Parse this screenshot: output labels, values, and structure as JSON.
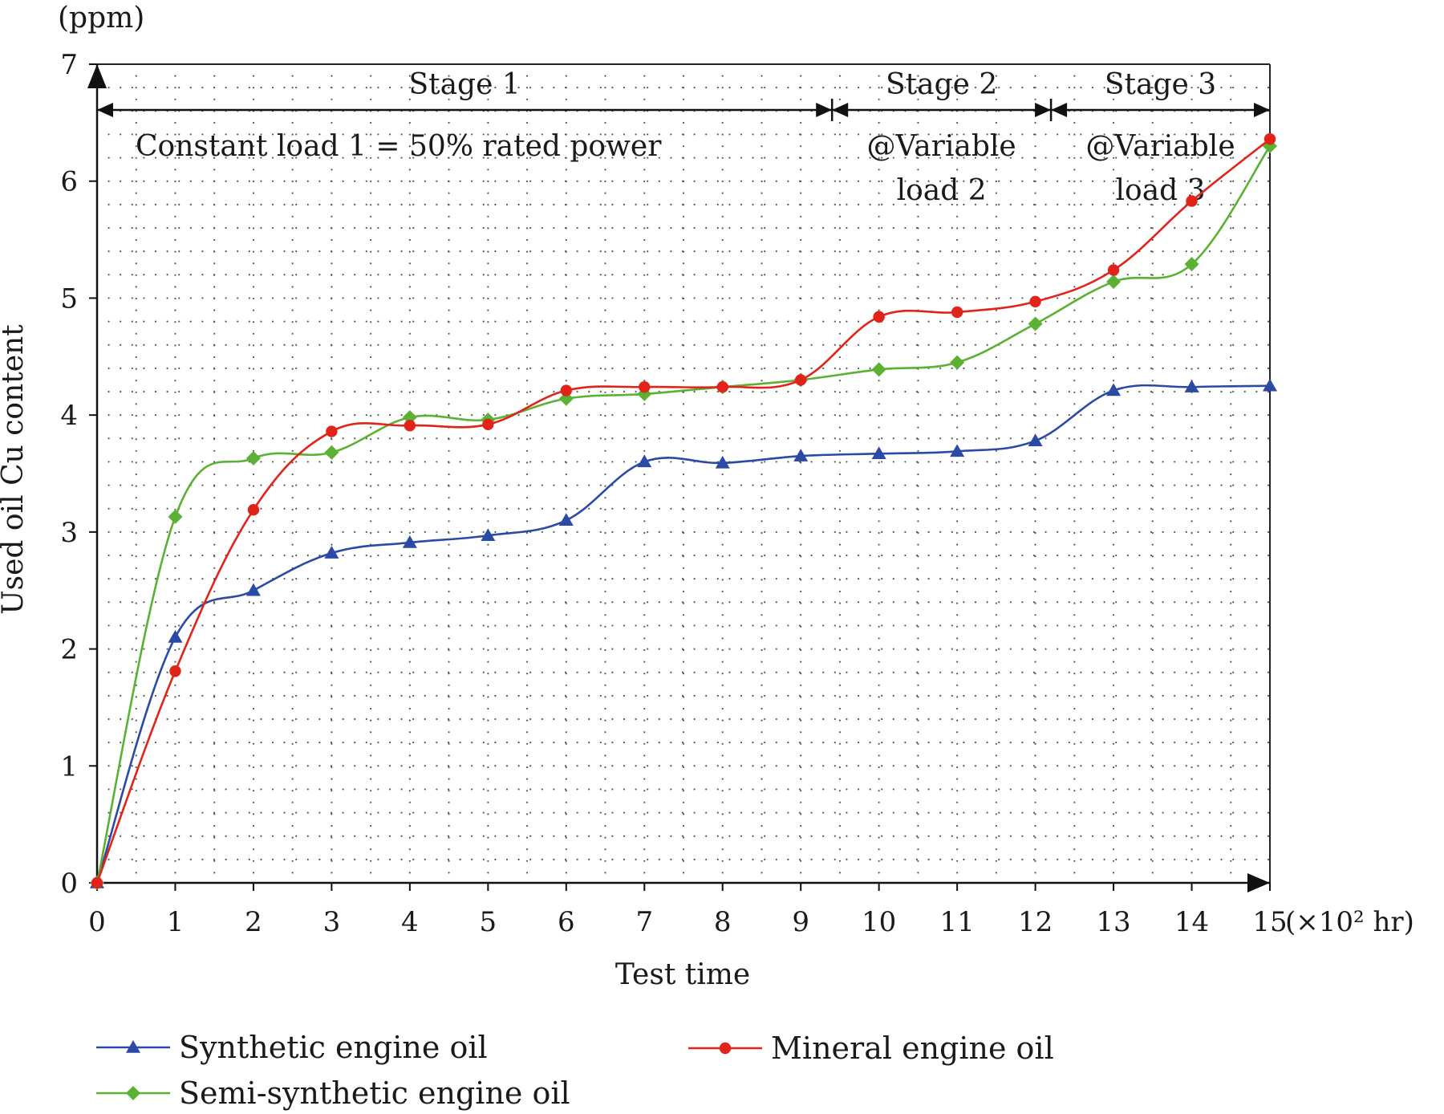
{
  "chart_data": {
    "type": "line",
    "title": "",
    "xlabel": "Test time",
    "xunit": "(×10² hr)",
    "ylabel": "Used oil Cu content",
    "yunit": "(ppm)",
    "xlim": [
      0,
      15
    ],
    "ylim": [
      0,
      7
    ],
    "x_ticks": [
      "0",
      "1",
      "2",
      "3",
      "4",
      "5",
      "6",
      "7",
      "8",
      "9",
      "10",
      "11",
      "12",
      "13",
      "14",
      "15"
    ],
    "y_ticks": [
      "0",
      "1",
      "2",
      "3",
      "4",
      "5",
      "6",
      "7"
    ],
    "grid": "dotted",
    "x": [
      0,
      1,
      2,
      3,
      4,
      5,
      6,
      7,
      8,
      9,
      10,
      11,
      12,
      13,
      14,
      15
    ],
    "series": [
      {
        "name": "Synthetic engine oil",
        "color": "#2b4aa6",
        "marker": "triangle",
        "values": [
          0,
          2.1,
          2.5,
          2.82,
          2.91,
          2.97,
          3.1,
          3.6,
          3.59,
          3.65,
          3.67,
          3.69,
          3.78,
          4.21,
          4.24,
          4.25
        ]
      },
      {
        "name": "Semi-synthetic engine oil",
        "color": "#5ab132",
        "marker": "diamond",
        "values": [
          0,
          3.13,
          3.63,
          3.68,
          3.98,
          3.96,
          4.14,
          4.18,
          4.24,
          4.3,
          4.39,
          4.45,
          4.78,
          5.14,
          5.29,
          6.3
        ]
      },
      {
        "name": "Mineral engine oil",
        "color": "#e2231a",
        "marker": "circle",
        "values": [
          0,
          1.81,
          3.19,
          3.86,
          3.91,
          3.92,
          4.21,
          4.24,
          4.24,
          4.3,
          4.84,
          4.88,
          4.97,
          5.24,
          5.83,
          6.36
        ]
      }
    ],
    "stages": [
      {
        "label": "Stage 1",
        "note_lines": [
          "Constant load 1 = 50% rated power"
        ],
        "x_start": 0,
        "x_end": 9.4
      },
      {
        "label": "Stage 2",
        "note_lines": [
          "@Variable",
          "load 2"
        ],
        "x_start": 9.4,
        "x_end": 12.2
      },
      {
        "label": "Stage 3",
        "note_lines": [
          "@Variable",
          "load 3"
        ],
        "x_start": 12.2,
        "x_end": 15
      }
    ],
    "legend": {
      "placement": "bottom",
      "entries": [
        "Synthetic engine oil",
        "Mineral engine oil",
        "Semi-synthetic engine oil"
      ]
    }
  }
}
